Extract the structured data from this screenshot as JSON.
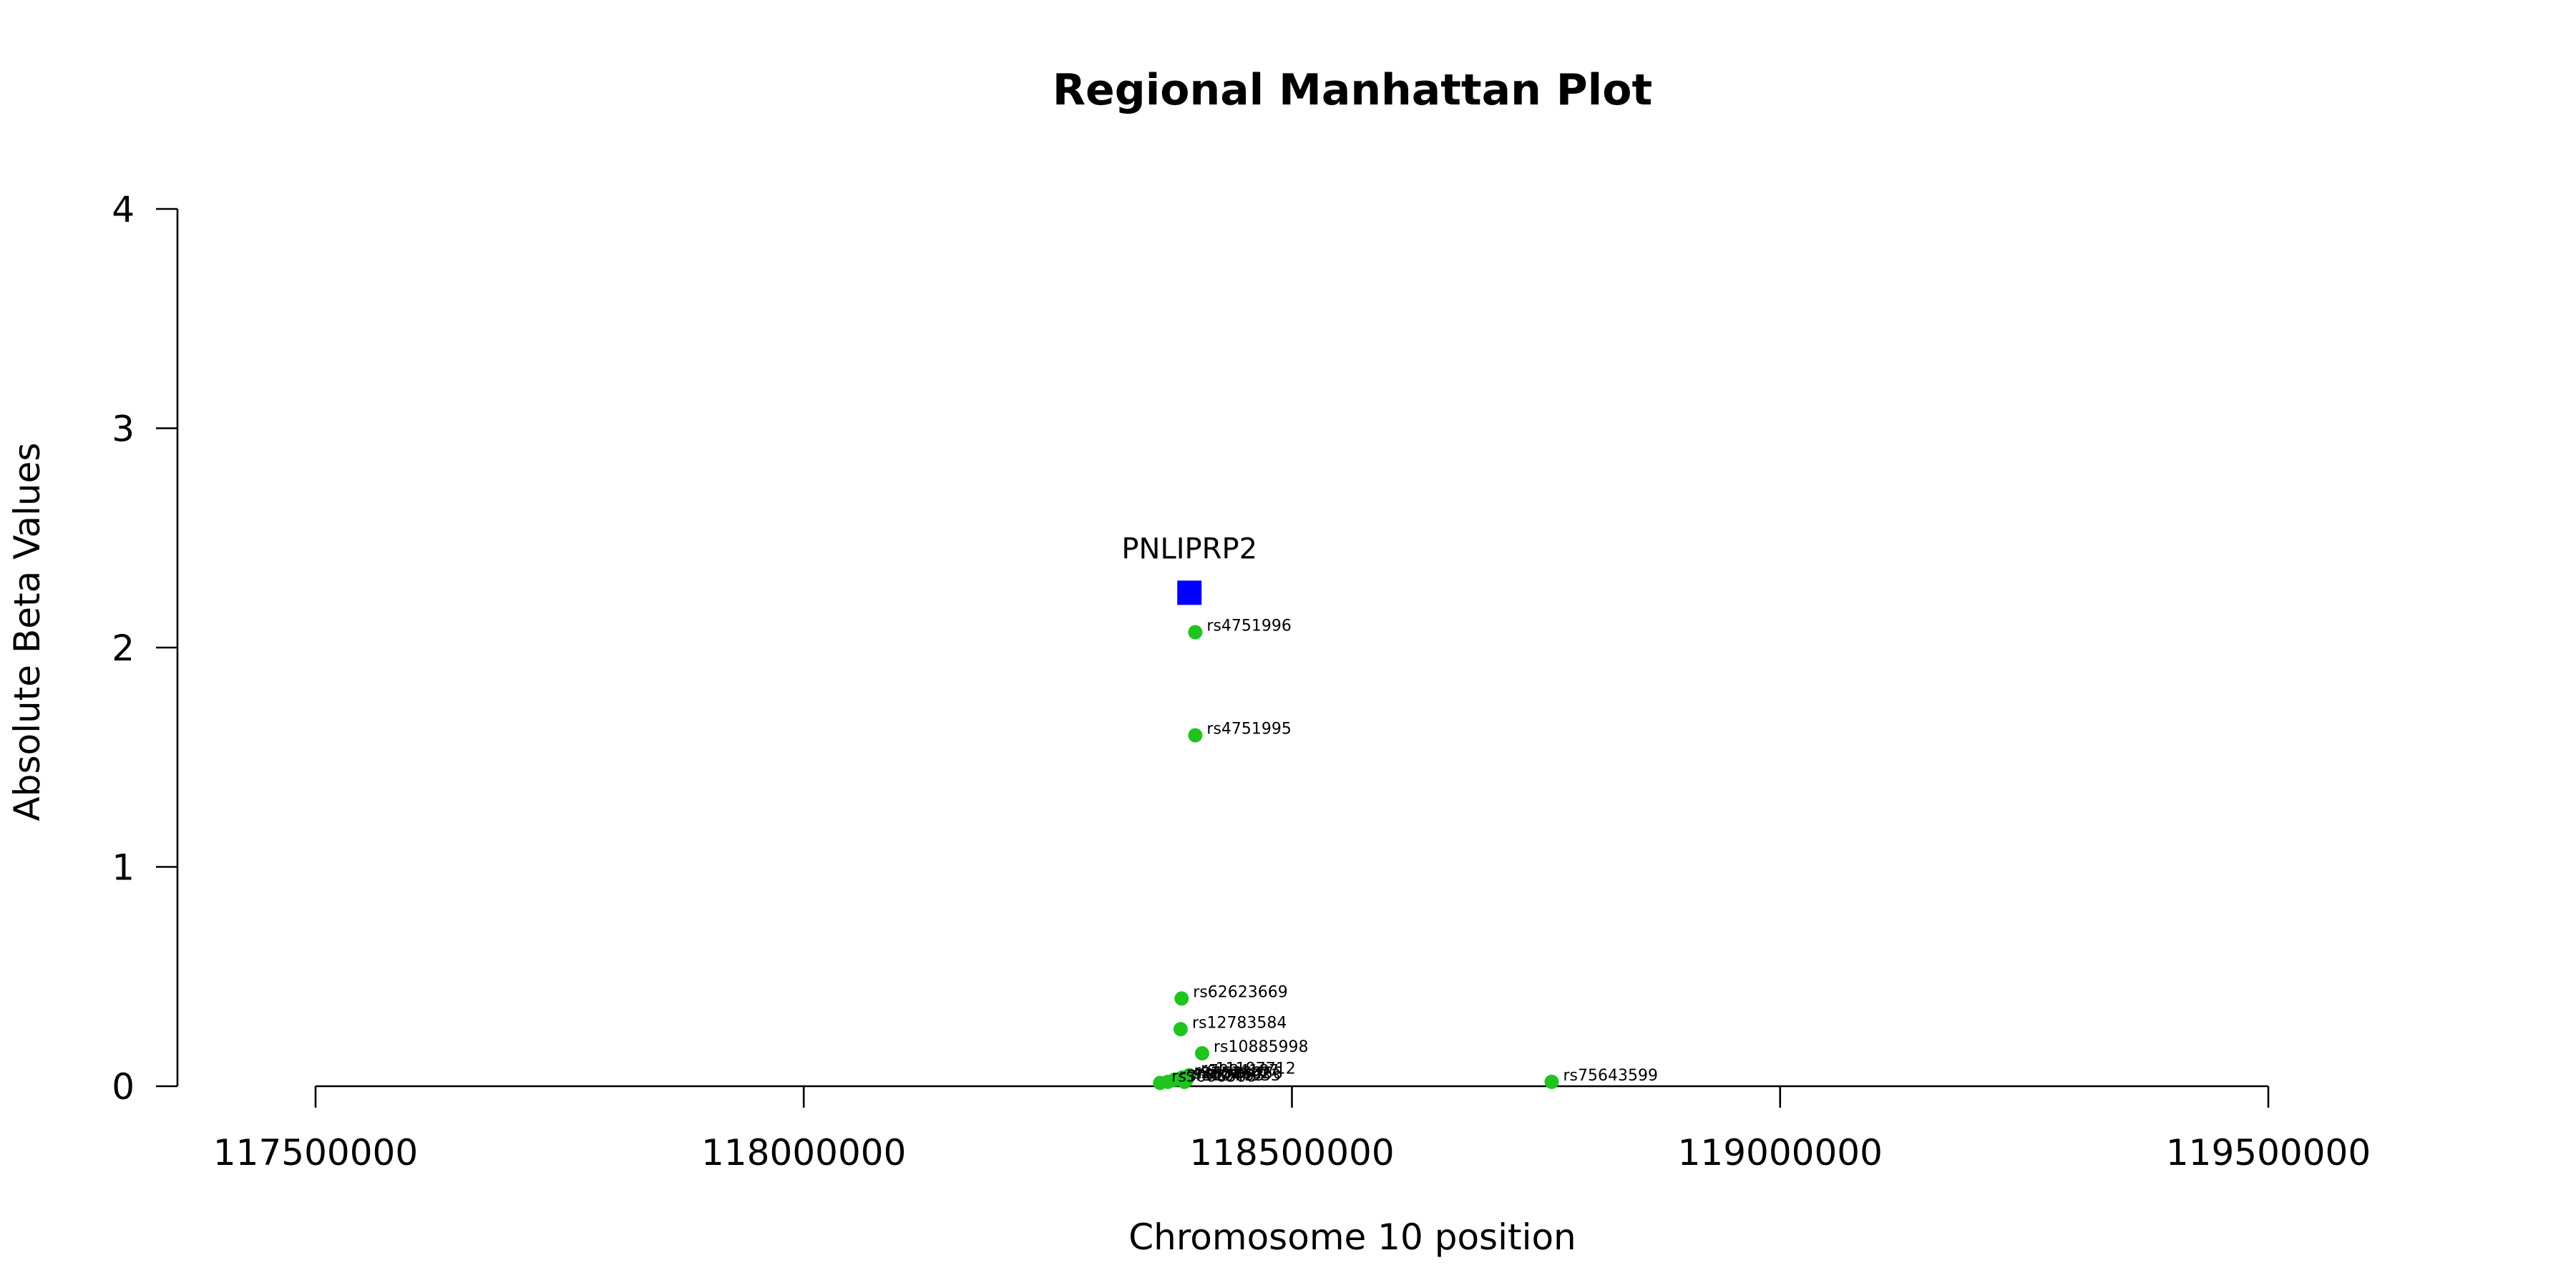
{
  "chart_data": {
    "type": "scatter",
    "title": "Regional Manhattan Plot",
    "xlabel": "Chromosome 10 position",
    "ylabel": "Absolute Beta Values",
    "xlim": [
      117360000,
      119640000
    ],
    "ylim": [
      0,
      4
    ],
    "x_ticks": [
      117500000,
      118000000,
      118500000,
      119000000,
      119500000
    ],
    "y_ticks": [
      0,
      1,
      2,
      3,
      4
    ],
    "grid": false,
    "colors": {
      "snp": "#1fc41f",
      "gene": "#0000ff"
    },
    "gene": {
      "name": "PNLIPRP2",
      "x": 118395000,
      "y": 2.25
    },
    "points": [
      {
        "label": "rs4751996",
        "x": 118401000,
        "y": 2.07
      },
      {
        "label": "rs4751995",
        "x": 118401000,
        "y": 1.6
      },
      {
        "label": "rs62623669",
        "x": 118387000,
        "y": 0.4
      },
      {
        "label": "rs12783584",
        "x": 118386000,
        "y": 0.26
      },
      {
        "label": "rs10885998",
        "x": 118408000,
        "y": 0.15
      },
      {
        "label": "rs11197712",
        "x": 118395000,
        "y": 0.05
      },
      {
        "label": "rs7084187",
        "x": 118388000,
        "y": 0.04
      },
      {
        "label": "rs2253662",
        "x": 118380000,
        "y": 0.03
      },
      {
        "label": "rs6585466",
        "x": 118392000,
        "y": 0.03
      },
      {
        "label": "rs7910453",
        "x": 118373000,
        "y": 0.02
      },
      {
        "label": "rs1044933",
        "x": 118390000,
        "y": 0.02
      },
      {
        "label": "rs3006500",
        "x": 118365000,
        "y": 0.015
      },
      {
        "label": "rs75643599",
        "x": 118766000,
        "y": 0.02
      }
    ]
  }
}
